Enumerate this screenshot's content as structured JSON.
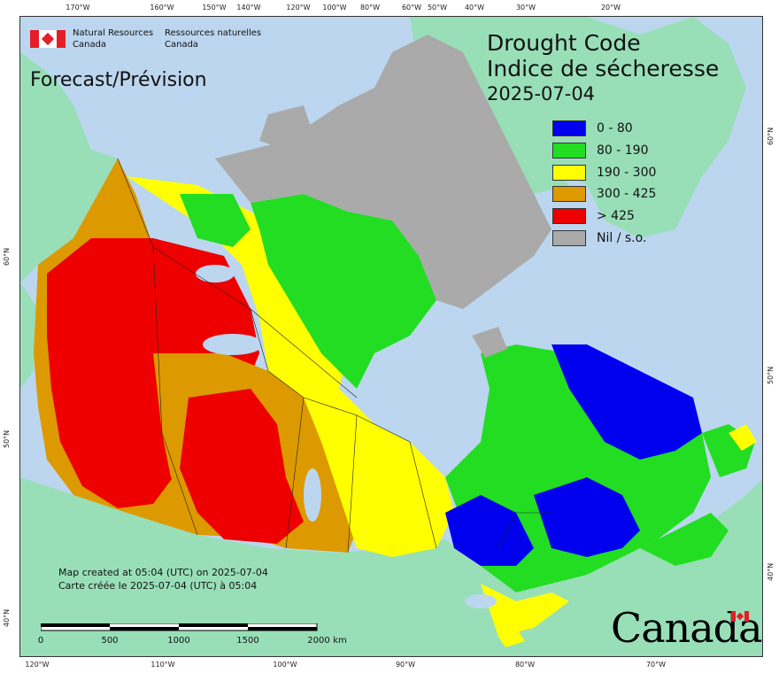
{
  "agency": {
    "name_en_line1": "Natural Resources",
    "name_en_line2": "Canada",
    "name_fr_line1": "Ressources naturelles",
    "name_fr_line2": "Canada"
  },
  "forecast_label": "Forecast/Prévision",
  "title_en": "Drought Code",
  "title_fr": "Indice de sécheresse",
  "date": "2025-07-04",
  "legend": [
    {
      "label": "0 - 80",
      "color": "#0000ee"
    },
    {
      "label": "80 - 190",
      "color": "#22dd22"
    },
    {
      "label": "190 - 300",
      "color": "#ffff00"
    },
    {
      "label": "300 - 425",
      "color": "#dd9900"
    },
    {
      "label": "> 425",
      "color": "#ee0000"
    },
    {
      "label": "Nil / s.o.",
      "color": "#aaaaaa"
    }
  ],
  "credit_en": "Map created at 05:04 (UTC) on 2025-07-04",
  "credit_fr": "Carte créée le 2025-07-04 (UTC) à 05:04",
  "scale": [
    "0",
    "500",
    "1000",
    "1500",
    "2000",
    "km"
  ],
  "wordmark": "Canada",
  "graticule": {
    "top": [
      "170°W",
      "160°W",
      "150°W",
      "140°W",
      "120°W",
      "100°W",
      "80°W",
      "60°W",
      "50°W",
      "40°W",
      "30°W",
      "20°W"
    ],
    "bottom": [
      "120°W",
      "110°W",
      "100°W",
      "90°W",
      "80°W",
      "70°W"
    ],
    "left": [
      "60°N",
      "50°N",
      "40°N"
    ],
    "right": [
      "60°N",
      "50°N",
      "40°N"
    ]
  },
  "colors": {
    "water": "#bcd6ef",
    "foreign_land": "#98dfb8",
    "nil": "#aaaaaa"
  }
}
